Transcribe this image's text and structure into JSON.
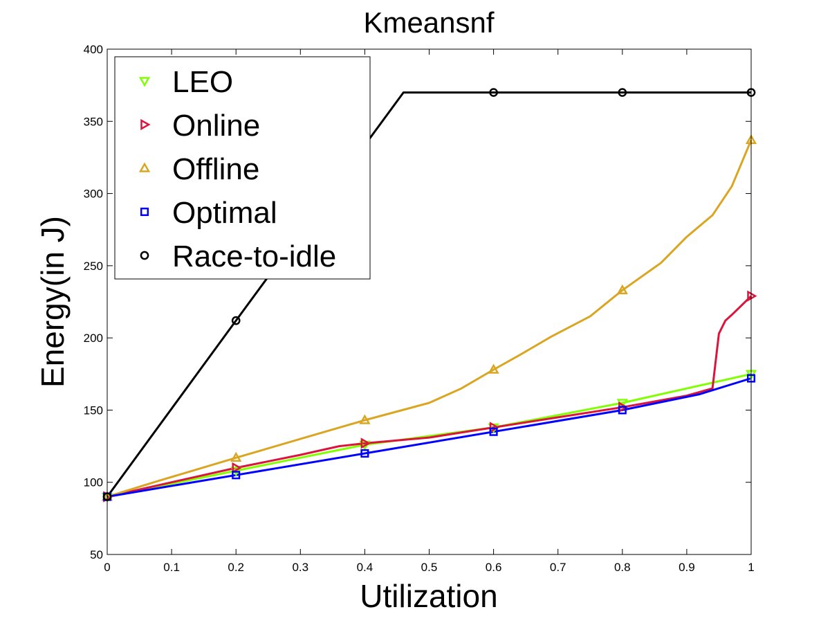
{
  "chart_data": {
    "type": "line",
    "title": "Kmeansnf",
    "xlabel": "Utilization",
    "ylabel": "Energy(in J)",
    "xlim": [
      0,
      1
    ],
    "ylim": [
      50,
      400
    ],
    "xticks": [
      0,
      0.1,
      0.2,
      0.3,
      0.4,
      0.5,
      0.6,
      0.7,
      0.8,
      0.9,
      1
    ],
    "xtick_labels": [
      "0",
      "0.1",
      "0.2",
      "0.3",
      "0.4",
      "0.5",
      "0.6",
      "0.7",
      "0.8",
      "0.9",
      "1"
    ],
    "yticks": [
      50,
      100,
      150,
      200,
      250,
      300,
      350,
      400
    ],
    "ytick_labels": [
      "50",
      "100",
      "150",
      "200",
      "250",
      "300",
      "350",
      "400"
    ],
    "grid": false,
    "legend_position": "top-left",
    "series": [
      {
        "name": "LEO",
        "color": "#7fff00",
        "marker": "triangle-down",
        "x": [
          0,
          0.2,
          0.4,
          0.6,
          0.8,
          1.0
        ],
        "y": [
          90,
          108,
          126,
          138,
          155,
          175
        ],
        "markers_x": [
          0,
          0.2,
          0.4,
          0.6,
          0.8,
          1.0
        ],
        "markers_y": [
          90,
          108,
          126,
          138,
          155,
          175
        ]
      },
      {
        "name": "Online",
        "color": "#dc143c",
        "marker": "triangle-right",
        "x": [
          0,
          0.1,
          0.2,
          0.3,
          0.36,
          0.4,
          0.5,
          0.6,
          0.7,
          0.8,
          0.9,
          0.94,
          0.95,
          0.96,
          0.97,
          1.0
        ],
        "y": [
          90,
          100,
          110,
          119,
          125,
          127,
          131,
          138,
          145,
          152,
          160,
          165,
          203,
          212,
          216,
          229
        ],
        "markers_x": [
          0,
          0.2,
          0.4,
          0.6,
          0.8,
          1.0
        ],
        "markers_y": [
          90,
          110,
          127,
          138,
          152,
          229
        ]
      },
      {
        "name": "Offline",
        "color": "#daa520",
        "marker": "triangle-up",
        "x": [
          0,
          0.08,
          0.2,
          0.3,
          0.4,
          0.5,
          0.55,
          0.6,
          0.64,
          0.69,
          0.75,
          0.8,
          0.86,
          0.9,
          0.94,
          0.97,
          1.0
        ],
        "y": [
          90,
          101,
          117,
          130,
          143,
          155,
          165,
          178,
          188,
          201,
          215,
          233,
          252,
          270,
          285,
          305,
          337
        ],
        "markers_x": [
          0,
          0.2,
          0.4,
          0.6,
          0.8,
          1.0
        ],
        "markers_y": [
          90,
          117,
          143,
          178,
          233,
          337
        ]
      },
      {
        "name": "Optimal",
        "color": "#0000ff",
        "marker": "square",
        "x": [
          0,
          0.2,
          0.4,
          0.6,
          0.8,
          0.92,
          1.0
        ],
        "y": [
          90,
          105,
          120,
          135,
          150,
          161,
          172
        ],
        "markers_x": [
          0,
          0.2,
          0.4,
          0.6,
          0.8,
          1.0
        ],
        "markers_y": [
          90,
          105,
          120,
          135,
          150,
          172
        ]
      },
      {
        "name": "Race-to-idle",
        "color": "#000000",
        "marker": "circle",
        "x": [
          0,
          0.2,
          0.46,
          0.6,
          0.8,
          1.0
        ],
        "y": [
          90,
          212,
          370,
          370,
          370,
          370
        ],
        "markers_x": [
          0,
          0.2,
          0.6,
          0.8,
          1.0
        ],
        "markers_y": [
          90,
          212,
          370,
          370,
          370
        ]
      }
    ]
  }
}
